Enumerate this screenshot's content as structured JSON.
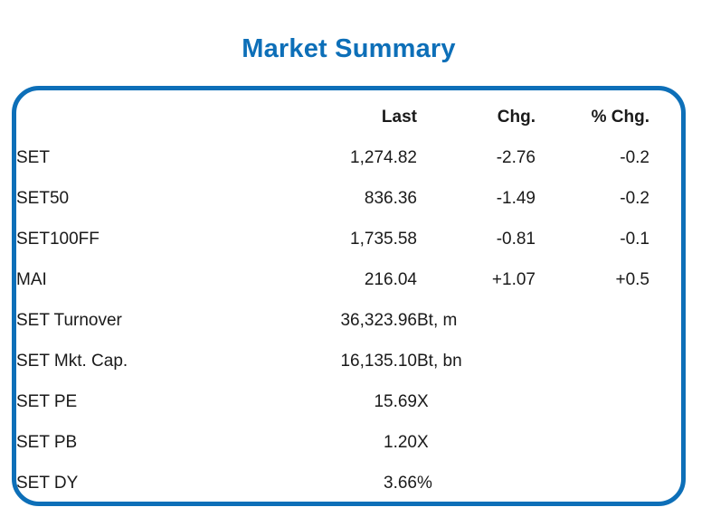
{
  "title": "Market Summary",
  "colors": {
    "accent": "#0d6fb8",
    "text": "#1a1a1a",
    "background": "#ffffff"
  },
  "chart_data": {
    "type": "table",
    "title": "Market Summary",
    "headers": {
      "label": "",
      "last": "Last",
      "chg": "Chg.",
      "pchg": "% Chg."
    },
    "rows": [
      {
        "label": "SET",
        "last": "1,274.82",
        "unit": "",
        "chg": "-2.76",
        "pchg": "-0.2"
      },
      {
        "label": "SET50",
        "last": "836.36",
        "unit": "",
        "chg": "-1.49",
        "pchg": "-0.2"
      },
      {
        "label": "SET100FF",
        "last": "1,735.58",
        "unit": "",
        "chg": "-0.81",
        "pchg": "-0.1"
      },
      {
        "label": "MAI",
        "last": "216.04",
        "unit": "",
        "chg": "+1.07",
        "pchg": "+0.5"
      },
      {
        "label": "SET Turnover",
        "last": "36,323.96",
        "unit": "Bt, m",
        "chg": "",
        "pchg": ""
      },
      {
        "label": "SET Mkt. Cap.",
        "last": "16,135.10",
        "unit": "Bt, bn",
        "chg": "",
        "pchg": ""
      },
      {
        "label": "SET PE",
        "last": "15.69",
        "unit": "X",
        "chg": "",
        "pchg": ""
      },
      {
        "label": "SET PB",
        "last": "1.20",
        "unit": "X",
        "chg": "",
        "pchg": ""
      },
      {
        "label": "SET DY",
        "last": "3.66",
        "unit": "%",
        "chg": "",
        "pchg": ""
      }
    ]
  }
}
